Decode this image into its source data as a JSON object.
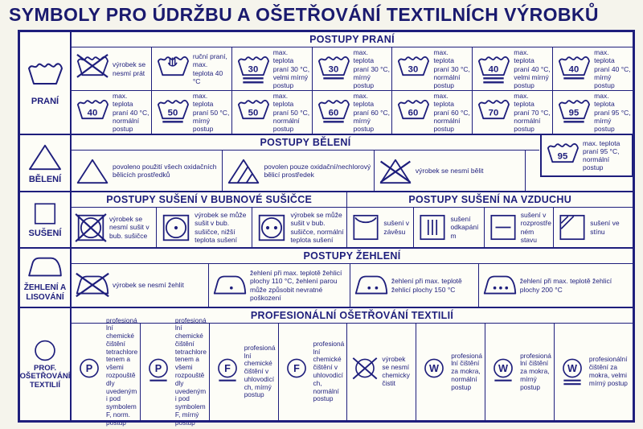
{
  "title": "SYMBOLY PRO ÚDRŽBU A OŠETŘOVÁNÍ TEXTILNÍCH VÝROBKŮ",
  "colors": {
    "ink": "#1e1e7c",
    "paper": "#fdfdf7",
    "page_bg": "#f5f4ec"
  },
  "sections": [
    {
      "label": "PRANÍ",
      "sidebar_icon": "washtub-icon",
      "header": "POSTUPY PRANÍ",
      "rows": [
        {
          "cells": [
            {
              "icon": {
                "name": "do-not-wash-icon",
                "kind": "tub",
                "crossed": true
              },
              "text": "výrobek se nesmí prát"
            },
            {
              "icon": {
                "name": "hand-wash-icon",
                "kind": "tub",
                "hand": true
              },
              "text": "ruční praní, max. teplota 40 °C"
            },
            {
              "icon": {
                "name": "wash-30-very-mild-icon",
                "kind": "tub",
                "num": "30",
                "bars": 2
              },
              "text": "max. teplota praní 30 °C, velmi mírný postup"
            },
            {
              "icon": {
                "name": "wash-30-mild-icon",
                "kind": "tub",
                "num": "30",
                "bars": 1
              },
              "text": "max. teplota praní 30 °C, mírný postup"
            },
            {
              "icon": {
                "name": "wash-30-normal-icon",
                "kind": "tub",
                "num": "30"
              },
              "text": "max. teplota praní 30 °C, normální postup"
            },
            {
              "icon": {
                "name": "wash-40-very-mild-icon",
                "kind": "tub",
                "num": "40",
                "bars": 2
              },
              "text": "max. teplota praní 40 °C, velmi mírný postup"
            },
            {
              "icon": {
                "name": "wash-40-mild-icon",
                "kind": "tub",
                "num": "40",
                "bars": 1
              },
              "text": "max. teplota praní 40 °C, mírný postup"
            }
          ]
        },
        {
          "cells": [
            {
              "icon": {
                "name": "wash-40-normal-icon",
                "kind": "tub",
                "num": "40"
              },
              "text": "max. teplota praní 40 °C, normální postup"
            },
            {
              "icon": {
                "name": "wash-50-mild-icon",
                "kind": "tub",
                "num": "50",
                "bars": 1
              },
              "text": "max. teplota praní 50 °C, mírný postup"
            },
            {
              "icon": {
                "name": "wash-50-normal-icon",
                "kind": "tub",
                "num": "50"
              },
              "text": "max. teplota praní 50 °C, normální postup"
            },
            {
              "icon": {
                "name": "wash-60-mild-icon",
                "kind": "tub",
                "num": "60",
                "bars": 1
              },
              "text": "max. teplota praní 60 °C, mírný postup"
            },
            {
              "icon": {
                "name": "wash-60-normal-icon",
                "kind": "tub",
                "num": "60"
              },
              "text": "max. teplota praní 60 °C, normální postup"
            },
            {
              "icon": {
                "name": "wash-70-normal-icon",
                "kind": "tub",
                "num": "70"
              },
              "text": "max. teplota praní 70 °C, normální postup"
            },
            {
              "icon": {
                "name": "wash-95-mild-icon",
                "kind": "tub",
                "num": "95",
                "bars": 1
              },
              "text": "max. teplota praní 95 °C, mírný postup"
            }
          ]
        }
      ]
    },
    {
      "label": "BĚLENÍ",
      "sidebar_icon": "bleach-triangle-icon",
      "header": "POSTUPY BĚLENÍ",
      "rows": [
        {
          "cells": [
            {
              "icon": {
                "name": "bleach-allowed-icon",
                "kind": "triangle"
              },
              "text": "povoleno použití všech oxidačních bělicích prostředků"
            },
            {
              "icon": {
                "name": "non-chlorine-bleach-icon",
                "kind": "triangle",
                "lines": true
              },
              "text": "povolen pouze oxidační/nechlorový bělicí prostředek"
            },
            {
              "icon": {
                "name": "do-not-bleach-icon",
                "kind": "triangle",
                "crossed": true
              },
              "text": "výrobek se nesmí bělit"
            }
          ]
        }
      ],
      "corner_cell": {
        "icon": {
          "name": "wash-95-normal-icon",
          "kind": "tub",
          "num": "95"
        },
        "text": "max. teplota praní 95 °C, normální postup"
      }
    },
    {
      "label": "SUŠENÍ",
      "sidebar_icon": "drying-square-icon",
      "headers": [
        "POSTUPY SUŠENÍ V BUBNOVÉ SUŠIČCE",
        "POSTUPY SUŠENÍ NA VZDUCHU"
      ],
      "rows": [
        {
          "cells": [
            {
              "icon": {
                "name": "do-not-tumble-dry-icon",
                "kind": "tumble",
                "crossed": true
              },
              "text": "výrobek se nesmí sušit v bub. sušičce"
            },
            {
              "icon": {
                "name": "tumble-dry-low-icon",
                "kind": "tumble",
                "dots": 1
              },
              "text": "výrobek se může sušit v bub. sušičce, nižší teplota sušení"
            },
            {
              "icon": {
                "name": "tumble-dry-normal-icon",
                "kind": "tumble",
                "dots": 2
              },
              "text": "výrobek se může sušit v bub. sušičce, normální teplota sušení"
            },
            {
              "icon": {
                "name": "line-dry-icon",
                "kind": "square",
                "variant": "hang"
              },
              "text": "sušení v závěsu"
            },
            {
              "icon": {
                "name": "drip-dry-icon",
                "kind": "square",
                "variant": "drip"
              },
              "text": "sušení odkapáním"
            },
            {
              "icon": {
                "name": "flat-dry-icon",
                "kind": "square",
                "variant": "flat"
              },
              "text": "sušení v rozprostřeném stavu"
            },
            {
              "icon": {
                "name": "shade-dry-icon",
                "kind": "square",
                "variant": "shade"
              },
              "text": "sušení ve stínu"
            }
          ]
        }
      ]
    },
    {
      "label": "ŽEHLENÍ A LISOVÁNÍ",
      "sidebar_icon": "iron-icon",
      "header": "POSTUPY ŽEHLENÍ",
      "rows": [
        {
          "cells": [
            {
              "icon": {
                "name": "do-not-iron-icon",
                "kind": "iron",
                "crossed": true
              },
              "text": "výrobek se nesmí žehlit"
            },
            {
              "icon": {
                "name": "iron-110-icon",
                "kind": "iron",
                "dots": 1
              },
              "text": "žehlení při max. teplotě žehlicí plochy 110 °C, žehlení parou může způsobit nevratné poškození"
            },
            {
              "icon": {
                "name": "iron-150-icon",
                "kind": "iron",
                "dots": 2
              },
              "text": "žehlení při max. teplotě žehlicí plochy 150 °C"
            },
            {
              "icon": {
                "name": "iron-200-icon",
                "kind": "iron",
                "dots": 3
              },
              "text": "žehlení při max. teplotě žehlicí plochy 200 °C"
            }
          ]
        }
      ]
    },
    {
      "label": "PROF. OŠETŘOVÁNÍ TEXTILIÍ",
      "sidebar_icon": "circle-icon",
      "header": "PROFESIONÁLNÍ OŠETŘOVÁNÍ TEXTILIÍ",
      "rows": [
        {
          "cells": [
            {
              "icon": {
                "name": "dry-clean-P-icon",
                "kind": "circle",
                "letter": "P"
              },
              "text": "profesionální chemické čištění tetrachloretenem a všemi rozpouštědly uvedenými pod symbolem F, norm. postup"
            },
            {
              "icon": {
                "name": "dry-clean-P-mild-icon",
                "kind": "circle",
                "letter": "P",
                "bars": 1
              },
              "text": "profesionální chemické čištění tetrachloretenem a všemi rozpouštědly uvedenými pod symbolem F, mírný postup"
            },
            {
              "icon": {
                "name": "dry-clean-F-mild-icon",
                "kind": "circle",
                "letter": "F",
                "bars": 1
              },
              "text": "profesionální chemické čištění v uhlovodicích, mírný postup"
            },
            {
              "icon": {
                "name": "dry-clean-F-icon",
                "kind": "circle",
                "letter": "F"
              },
              "text": "profesionální chemické čištění v uhlovodicích, normální postup"
            },
            {
              "icon": {
                "name": "do-not-dry-clean-icon",
                "kind": "circle",
                "crossed": true
              },
              "text": "výrobek se nesmí chemicky čistit"
            },
            {
              "icon": {
                "name": "wet-clean-icon",
                "kind": "circle",
                "letter": "W"
              },
              "text": "profesionální čištění za mokra, normální postup"
            },
            {
              "icon": {
                "name": "wet-clean-mild-icon",
                "kind": "circle",
                "letter": "W",
                "bars": 1
              },
              "text": "profesionální čištění za mokra, mírný postup"
            },
            {
              "icon": {
                "name": "wet-clean-very-mild-icon",
                "kind": "circle",
                "letter": "W",
                "bars": 2
              },
              "text": "profesionální čištění za mokra, velmi mírný postup"
            }
          ]
        }
      ]
    }
  ]
}
